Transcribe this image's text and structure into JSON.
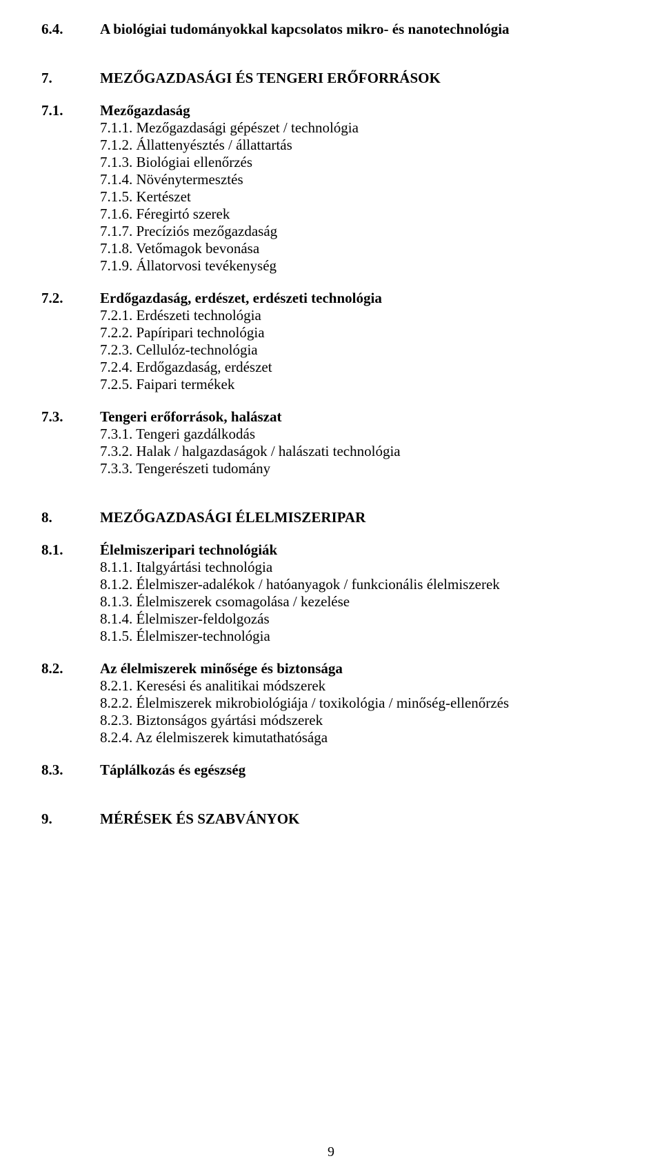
{
  "section64": {
    "num": "6.4.",
    "title": "A biológiai tudományokkal kapcsolatos mikro- és nanotechnológia"
  },
  "section7": {
    "num": "7.",
    "title": "MEZŐGAZDASÁGI ÉS TENGERI ERŐFORRÁSOK"
  },
  "section71": {
    "num": "7.1.",
    "title": "Mezőgazdaság",
    "items": [
      "7.1.1. Mezőgazdasági gépészet / technológia",
      "7.1.2. Állattenyésztés / állattartás",
      "7.1.3. Biológiai ellenőrzés",
      "7.1.4. Növénytermesztés",
      "7.1.5. Kertészet",
      "7.1.6. Féregirtó szerek",
      "7.1.7. Precíziós mezőgazdaság",
      "7.1.8. Vetőmagok bevonása",
      "7.1.9. Állatorvosi tevékenység"
    ]
  },
  "section72": {
    "num": "7.2.",
    "title": "Erdőgazdaság, erdészet, erdészeti technológia",
    "items": [
      "7.2.1. Erdészeti technológia",
      "7.2.2. Papíripari technológia",
      "7.2.3. Cellulóz-technológia",
      "7.2.4. Erdőgazdaság, erdészet",
      "7.2.5. Faipari termékek"
    ]
  },
  "section73": {
    "num": "7.3.",
    "title": "Tengeri erőforrások, halászat",
    "items": [
      "7.3.1. Tengeri gazdálkodás",
      "7.3.2. Halak / halgazdaságok / halászati technológia",
      "7.3.3. Tengerészeti tudomány"
    ]
  },
  "section8": {
    "num": "8.",
    "title": "MEZŐGAZDASÁGI ÉLELMISZERIPAR"
  },
  "section81": {
    "num": "8.1.",
    "title": "Élelmiszeripari technológiák",
    "items": [
      "8.1.1. Italgyártási technológia",
      "8.1.2. Élelmiszer-adalékok / hatóanyagok / funkcionális élelmiszerek",
      "8.1.3. Élelmiszerek csomagolása / kezelése",
      "8.1.4. Élelmiszer-feldolgozás",
      "8.1.5. Élelmiszer-technológia"
    ]
  },
  "section82": {
    "num": "8.2.",
    "title": "Az élelmiszerek minősége és biztonsága",
    "items": [
      "8.2.1. Keresési és analitikai módszerek",
      "8.2.2. Élelmiszerek mikrobiológiája / toxikológia / minőség-ellenőrzés",
      "8.2.3. Biztonságos gyártási módszerek",
      "8.2.4. Az élelmiszerek kimutathatósága"
    ]
  },
  "section83": {
    "num": "8.3.",
    "title": "Táplálkozás és egészség"
  },
  "section9": {
    "num": "9.",
    "title": "MÉRÉSEK ÉS SZABVÁNYOK"
  },
  "pageNumber": "9"
}
